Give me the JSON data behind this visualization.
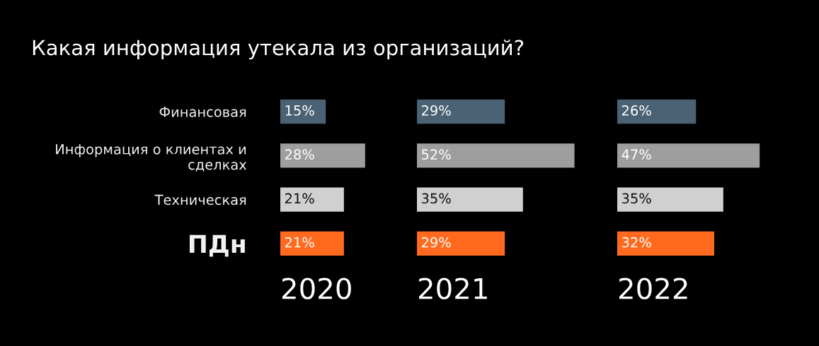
{
  "chart_data": [
    {
      "type": "bar",
      "orientation": "horizontal",
      "title": "Какая информация утекала из организаций?",
      "xlabel": "2020",
      "categories": [
        "Финансовая",
        "Информация о клиентах и\nсделках",
        "Техническая",
        "ПДн"
      ],
      "values": [
        15,
        28,
        21,
        21
      ],
      "value_labels": [
        "15%",
        "28%",
        "21%",
        "21%"
      ],
      "colors": [
        "#4a6274",
        "#9e9e9e",
        "#d0d0d0",
        "#ff6a1f"
      ],
      "tick_labels": "y"
    },
    {
      "type": "bar",
      "orientation": "horizontal",
      "xlabel": "2021",
      "categories": [
        null,
        null,
        null,
        null
      ],
      "values": [
        29,
        52,
        35,
        29
      ],
      "value_labels": [
        "29%",
        "52%",
        "35%",
        "29%"
      ],
      "colors": [
        "#4a6274",
        "#9e9e9e",
        "#d0d0d0",
        "#ff6a1f"
      ],
      "tick_labels": false
    },
    {
      "type": "bar",
      "orientation": "horizontal",
      "xlabel": "2022",
      "categories": [
        null,
        null,
        null,
        null
      ],
      "values": [
        26,
        47,
        35,
        32
      ],
      "value_labels": [
        "26%",
        "47%",
        "35%",
        "32%"
      ],
      "colors": [
        "#4a6274",
        "#9e9e9e",
        "#d0d0d0",
        "#ff6a1f"
      ],
      "tick_labels": false
    }
  ]
}
